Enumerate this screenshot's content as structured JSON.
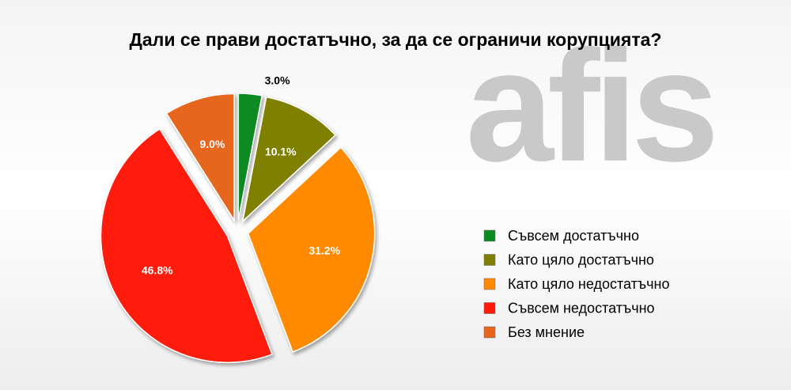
{
  "chart_data": {
    "type": "pie",
    "title": "Дали се прави достатъчно, за да се ограничи корупцията?",
    "watermark": "afis",
    "categories": [
      "Съвсем достатъчно",
      "Като цяло достатъчно",
      "Като цяло недостатъчно",
      "Съвсем недостатъчно",
      "Без мнение"
    ],
    "values": [
      3.0,
      10.1,
      31.2,
      46.8,
      9.0
    ],
    "value_labels": [
      "3.0%",
      "10.1%",
      "31.2%",
      "46.8%",
      "9.0%"
    ],
    "colors": [
      "#0b8a22",
      "#7f7f05",
      "#ff8a00",
      "#ff1a0a",
      "#e5661c"
    ],
    "legend": "right"
  }
}
